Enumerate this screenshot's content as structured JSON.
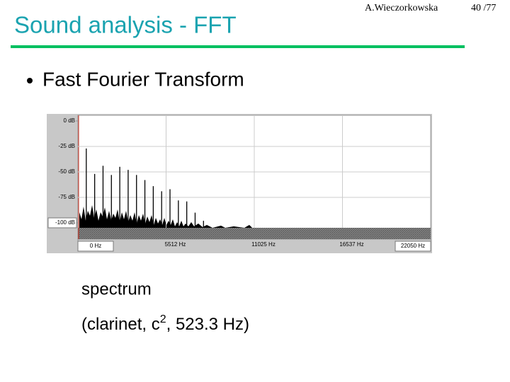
{
  "header": {
    "title": "Sound analysis - FFT",
    "author": "A.Wieczorkowska",
    "page": "40 /77"
  },
  "bullet": "Fast Fourier Transform",
  "spectrum": {
    "xlim": [
      0,
      22050
    ],
    "ylim": [
      -100,
      0
    ],
    "xticks": [
      {
        "value": 0,
        "label": "0 Hz"
      },
      {
        "value": 5512,
        "label": "5512 Hz"
      },
      {
        "value": 11025,
        "label": "11025 Hz"
      },
      {
        "value": 16537,
        "label": "16537 Hz"
      },
      {
        "value": 22050,
        "label": "22050 Hz"
      }
    ],
    "yticks": [
      {
        "value": 0,
        "label": "0 dB"
      },
      {
        "value": -25,
        "label": "-25 dB"
      },
      {
        "value": -50,
        "label": "-50 dB"
      },
      {
        "value": -75,
        "label": "-75 dB"
      },
      {
        "value": -100,
        "label": "-100 dB"
      }
    ],
    "peaks": {
      "freq": [
        523,
        1047,
        1570,
        2093,
        2617,
        3140,
        3663,
        4186,
        4710,
        5233,
        5756,
        6280,
        6803,
        7326,
        7850
      ],
      "db": [
        -27,
        -52,
        -44,
        -53,
        -45,
        -48,
        -53,
        -58,
        -64,
        -69,
        -67,
        -78,
        -79,
        -90,
        -98
      ]
    }
  },
  "caption": {
    "line1": "spectrum",
    "line2_start": "(clarinet, c",
    "line2_sup": "2",
    "line2_end": ", 523.3 Hz)"
  }
}
